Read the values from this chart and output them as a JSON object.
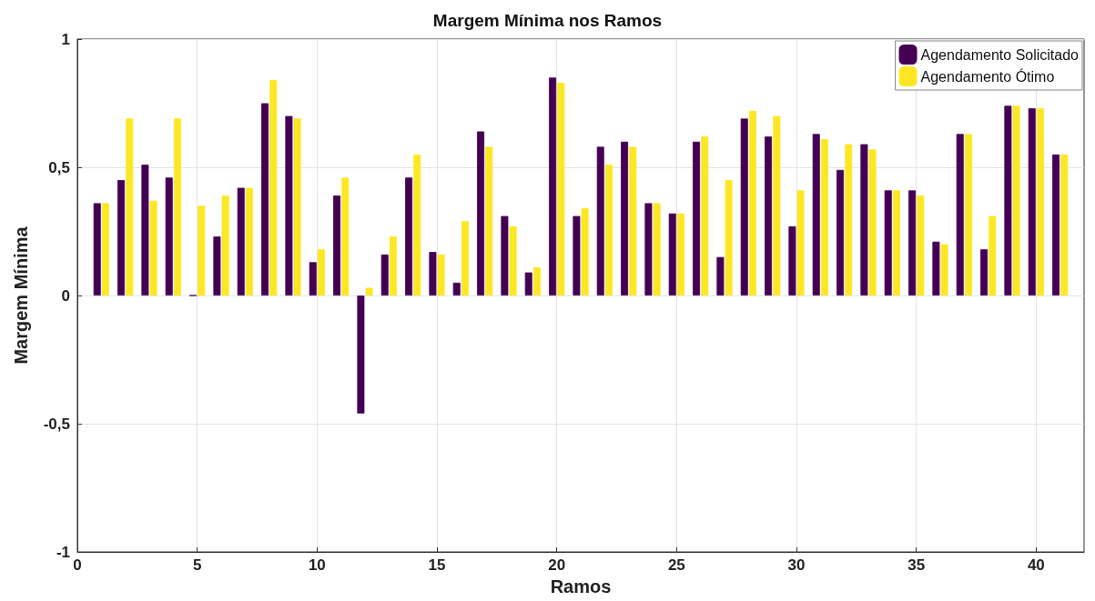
{
  "chart_data": {
    "type": "bar",
    "title": "Margem Mínima nos Ramos",
    "xlabel": "Ramos",
    "ylabel": "Margem Mínima",
    "x": [
      1,
      2,
      3,
      4,
      5,
      6,
      7,
      8,
      9,
      10,
      11,
      12,
      13,
      14,
      15,
      16,
      17,
      18,
      19,
      20,
      21,
      22,
      23,
      24,
      25,
      26,
      27,
      28,
      29,
      30,
      31,
      32,
      33,
      34,
      35,
      36,
      37,
      38,
      39,
      40,
      41
    ],
    "series": [
      {
        "name": "Agendamento Solicitado",
        "color": "#440154",
        "values": [
          0.36,
          0.45,
          0.51,
          0.46,
          0,
          0.23,
          0.42,
          0.75,
          0.7,
          0.13,
          0.39,
          -0.46,
          0.16,
          0.46,
          0.17,
          0.05,
          0.64,
          0.31,
          0.09,
          0.85,
          0.31,
          0.58,
          0.6,
          0.36,
          0.32,
          0.6,
          0.15,
          0.69,
          0.62,
          0.27,
          0.63,
          0.49,
          0.59,
          0.41,
          0.41,
          0.21,
          0.63,
          0.18,
          0.74,
          0.73,
          0.55
        ]
      },
      {
        "name": "Agendamento Ótimo",
        "color": "#fde725",
        "values": [
          0.36,
          0.69,
          0.37,
          0.69,
          0.35,
          0.39,
          0.42,
          0.84,
          0.69,
          0.18,
          0.46,
          0.03,
          0.23,
          0.55,
          0.16,
          0.29,
          0.58,
          0.27,
          0.11,
          0.83,
          0.34,
          0.51,
          0.58,
          0.36,
          0.32,
          0.62,
          0.45,
          0.72,
          0.7,
          0.41,
          0.61,
          0.59,
          0.57,
          0.41,
          0.39,
          0.2,
          0.63,
          0.31,
          0.74,
          0.73,
          0.55
        ]
      }
    ],
    "xlim": [
      0,
      42
    ],
    "xticks": [
      0,
      5,
      10,
      15,
      20,
      25,
      30,
      35,
      40
    ],
    "ylim": [
      -1,
      1
    ],
    "yticks": [
      -1,
      {
        "value": -0.5,
        "label": "-0,5"
      },
      0,
      {
        "value": 0.5,
        "label": "0,5"
      },
      1
    ],
    "grid": true,
    "legend": "top right"
  }
}
